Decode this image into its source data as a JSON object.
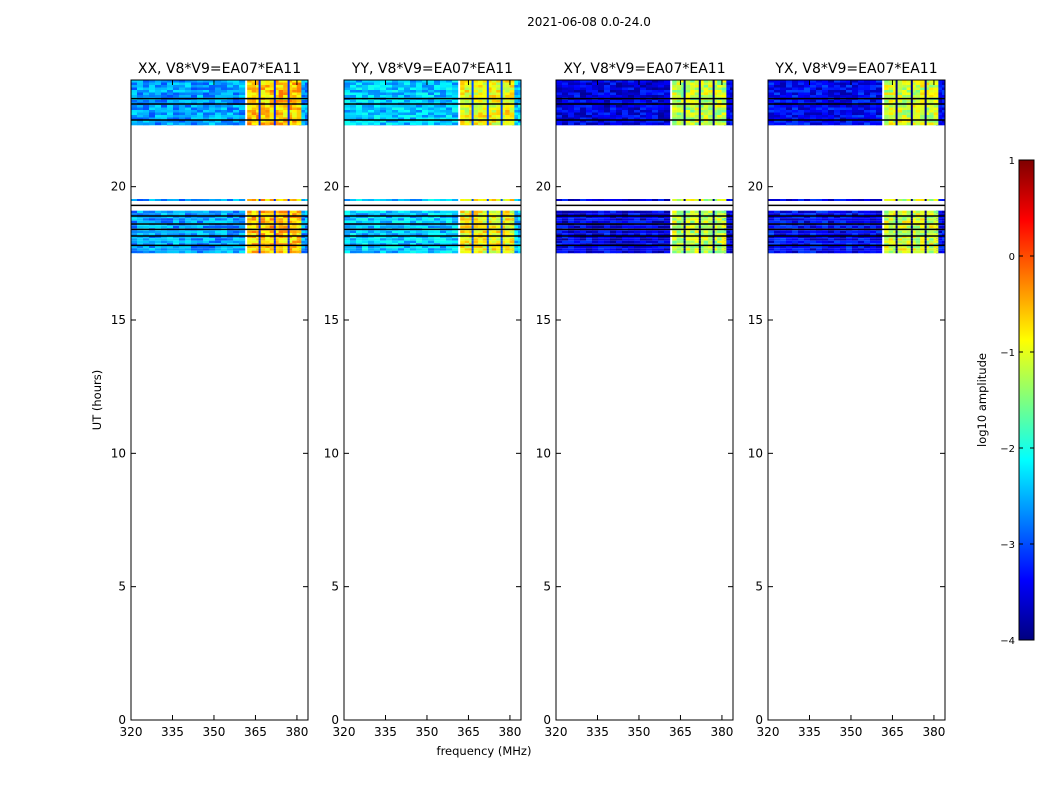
{
  "chart_data": {
    "type": "heatmap",
    "suptitle": "2021-06-08 0.0-24.0",
    "ylabel": "UT (hours)",
    "xlabel": "frequency (MHz)",
    "xlim": [
      320,
      384
    ],
    "ylim": [
      0,
      24
    ],
    "xticks": [
      320,
      335,
      350,
      365,
      380
    ],
    "yticks": [
      0,
      5,
      10,
      15,
      20
    ],
    "colorbar": {
      "label": "log10 amplitude",
      "range": [
        -4,
        1
      ],
      "ticks": [
        1,
        0,
        -1,
        -2,
        -3,
        -4
      ],
      "tick_labels": [
        "1",
        "0",
        "−1",
        "−2",
        "−3",
        "−4"
      ],
      "colormap": "jet",
      "stops": [
        "#00007f",
        "#0000ff",
        "#007fff",
        "#00ffff",
        "#7fff7f",
        "#ffff00",
        "#ff7f00",
        "#ff0000",
        "#7f0000"
      ]
    },
    "panels": [
      {
        "title": "XX, V8*V9=EA07*EA11",
        "base_level": -2.6,
        "rfi_level": -0.6
      },
      {
        "title": "YY, V8*V9=EA07*EA11",
        "base_level": -2.4,
        "rfi_level": -0.9
      },
      {
        "title": "XY, V8*V9=EA07*EA11",
        "base_level": -3.5,
        "rfi_level": -1.2
      },
      {
        "title": "YX, V8*V9=EA07*EA11",
        "base_level": -3.4,
        "rfi_level": -1.1
      }
    ],
    "data_segments_hours": [
      [
        17.5,
        19.1
      ],
      [
        22.3,
        24.0
      ]
    ],
    "isolated_scan_hour": 19.5,
    "flagged_lines_hours": [
      23.3,
      23.1,
      22.5,
      19.3,
      18.9,
      18.6,
      18.4,
      18.15,
      17.8
    ],
    "rfi_band_mhz": [
      362,
      380
    ],
    "rfi_gap_centers_mhz": [
      366.5,
      372,
      377
    ]
  }
}
